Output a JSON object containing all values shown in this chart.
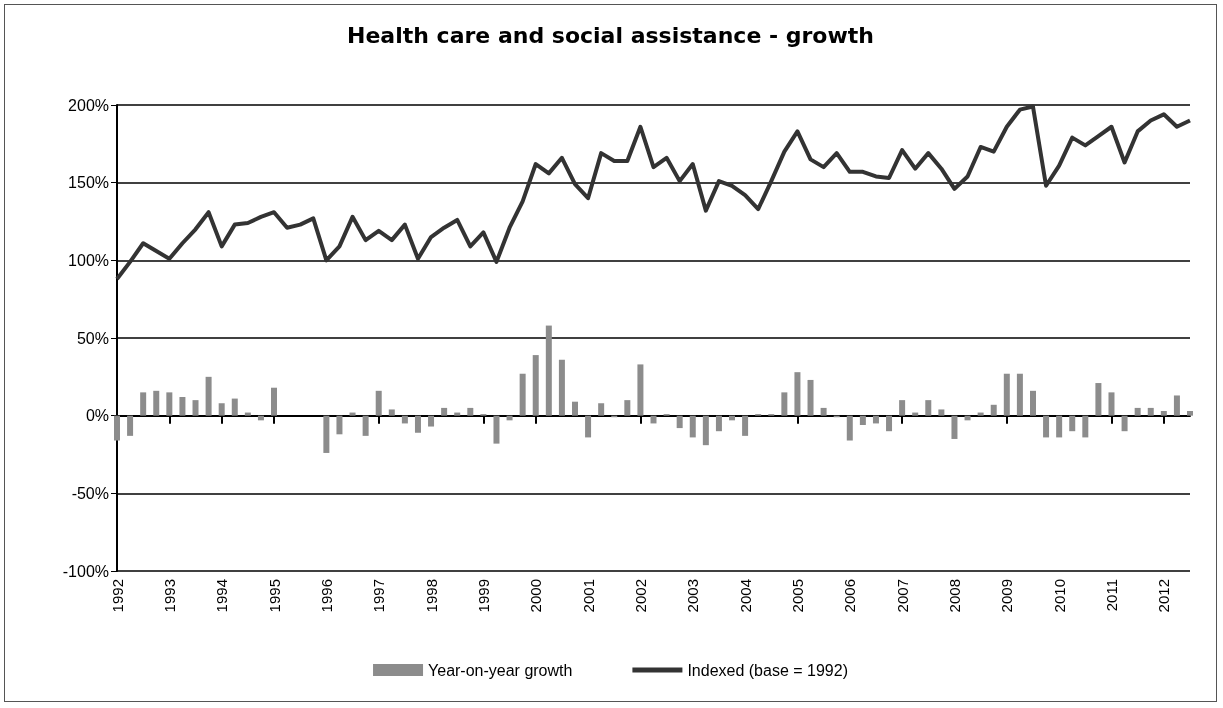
{
  "chart_data": {
    "type": "bar",
    "title": "Health care and social assistance - growth",
    "categories": [
      "1992",
      null,
      null,
      null,
      "1993",
      null,
      null,
      null,
      "1994",
      null,
      null,
      null,
      "1995",
      null,
      null,
      null,
      "1996",
      null,
      null,
      null,
      "1997",
      null,
      null,
      null,
      "1998",
      null,
      null,
      null,
      "1999",
      null,
      null,
      null,
      "2000",
      null,
      null,
      null,
      "2001",
      null,
      null,
      null,
      "2002",
      null,
      null,
      null,
      "2003",
      null,
      null,
      null,
      "2004",
      null,
      null,
      null,
      "2005",
      null,
      null,
      null,
      "2006",
      null,
      null,
      null,
      "2007",
      null,
      null,
      null,
      "2008",
      null,
      null,
      null,
      "2009",
      null,
      null,
      null,
      "2010",
      null,
      null,
      null,
      "2011",
      null,
      null,
      null,
      "2012",
      null,
      null
    ],
    "series": [
      {
        "name": "Year-on-year growth",
        "color": "#8c8c8c",
        "values": [
          -16,
          -13,
          15,
          16,
          15,
          12,
          10,
          25,
          8,
          11,
          2,
          -3,
          18,
          0,
          0,
          0,
          -24,
          -12,
          2,
          -13,
          16,
          4,
          -5,
          -11,
          -7,
          5,
          2,
          5,
          1,
          -18,
          -3,
          27,
          39,
          58,
          36,
          9,
          -14,
          8,
          -1,
          10,
          33,
          -5,
          1,
          -8,
          -14,
          -19,
          -10,
          -3,
          -13,
          1,
          1,
          15,
          28,
          23,
          5,
          -1,
          -16,
          -6,
          -5,
          -10,
          10,
          2,
          10,
          4,
          -15,
          -3,
          2,
          7,
          27,
          27,
          16,
          -14,
          -14,
          -10,
          -14,
          21,
          15,
          -10,
          5,
          5,
          3,
          13,
          3
        ]
      },
      {
        "name": "Indexed (base = 1992)",
        "type": "line",
        "color": "#333333",
        "values": [
          88,
          99,
          111,
          106,
          101,
          111,
          120,
          131,
          109,
          123,
          124,
          128,
          131,
          121,
          123,
          127,
          100,
          109,
          128,
          113,
          119,
          113,
          123,
          101,
          115,
          121,
          126,
          109,
          118,
          99,
          121,
          138,
          162,
          156,
          166,
          149,
          140,
          169,
          164,
          164,
          186,
          160,
          166,
          151,
          162,
          132,
          151,
          148,
          142,
          133,
          151,
          170,
          183,
          165,
          160,
          169,
          157,
          157,
          154,
          153,
          171,
          159,
          169,
          159,
          146,
          154,
          173,
          170,
          186,
          197,
          199,
          148,
          161,
          179,
          174,
          180,
          186,
          163,
          183,
          190,
          194,
          186,
          190
        ]
      }
    ],
    "ylim": [
      -100,
      200
    ],
    "yticks": [
      {
        "value": -100,
        "label": "-100%"
      },
      {
        "value": -50,
        "label": "-50%"
      },
      {
        "value": 0,
        "label": "0%"
      },
      {
        "value": 50,
        "label": "50%"
      },
      {
        "value": 100,
        "label": "100%"
      },
      {
        "value": 150,
        "label": "150%"
      },
      {
        "value": 200,
        "label": "200%"
      }
    ],
    "grid": "y",
    "legend": "bottom",
    "marker": "none"
  }
}
